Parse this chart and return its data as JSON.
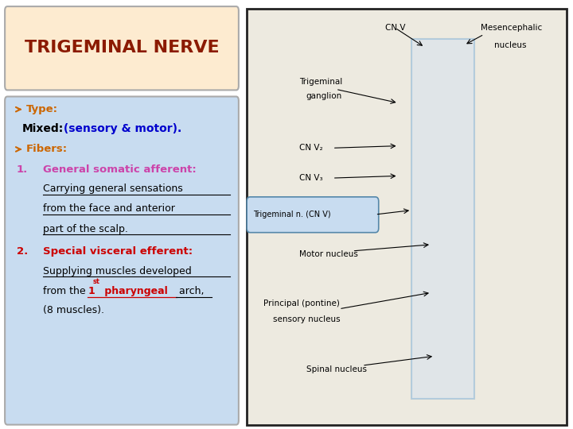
{
  "title": "TRIGEMINAL NERVE",
  "title_color": "#8B1A00",
  "title_bg": "#FDEBD0",
  "panel_bg": "#C8DCF0",
  "bullet_color": "#CC6600",
  "type_label": "Type:",
  "mixed_black": "Mixed:",
  "mixed_colored": " (sensory & motor).",
  "mixed_color": "#0000CD",
  "fibers_label": "Fibers:",
  "item1_label": "General somatic afferent:",
  "item1_color": "#CC44AA",
  "item1_text1": "Carrying general sensations",
  "item1_text2": "from the face and anterior",
  "item1_text3": "part of the scalp.",
  "item2_label": "Special visceral efferent:",
  "item2_color": "#CC0000",
  "item2_text1": "Supplying muscles developed",
  "item2_text2_pre": "from the ",
  "item2_text2_super": "1",
  "item2_text2_sup_label": "st",
  "item2_text2_mid": " pharyngeal",
  "item2_text2_post": " arch,",
  "item2_text3": "(8 muscles).",
  "bg_color": "#FFFFFF",
  "border_color": "#333333",
  "figsize": [
    7.2,
    5.4
  ],
  "dpi": 100
}
